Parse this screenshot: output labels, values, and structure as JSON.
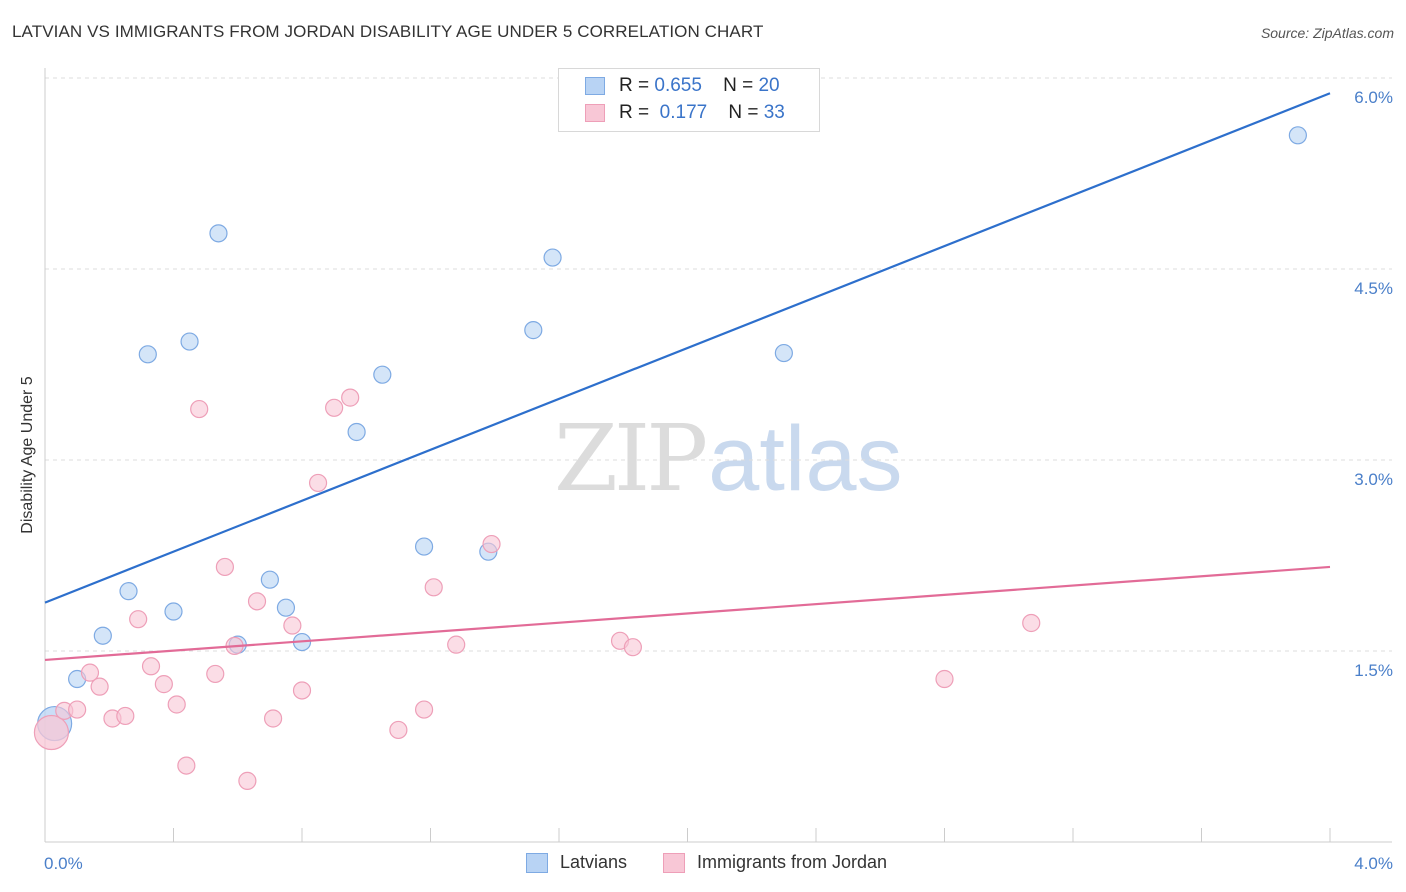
{
  "title": "LATVIAN VS IMMIGRANTS FROM JORDAN DISABILITY AGE UNDER 5 CORRELATION CHART",
  "source": "Source: ZipAtlas.com",
  "watermark": {
    "zip": "ZIP",
    "atlas": "atlas"
  },
  "colors": {
    "blue_fill": "#b8d3f4",
    "blue_stroke": "#7eaae3",
    "blue_line": "#2d6fcc",
    "pink_fill": "#f8c7d6",
    "pink_stroke": "#ee9fb8",
    "pink_line": "#e26b97",
    "tick_label": "#4a7fc9",
    "grid": "#dddddd"
  },
  "stats": [
    {
      "r_label": "R =",
      "r_value": "0.655",
      "n_label": "N =",
      "n_value": "20",
      "swatch": "blue"
    },
    {
      "r_label": "R =",
      "r_value": "0.177",
      "n_label": "N =",
      "n_value": "33",
      "swatch": "pink"
    }
  ],
  "legend": [
    {
      "label": "Latvians",
      "swatch": "blue"
    },
    {
      "label": "Immigrants from Jordan",
      "swatch": "pink"
    }
  ],
  "chart_data": {
    "type": "scatter",
    "title": "LATVIAN VS IMMIGRANTS FROM JORDAN DISABILITY AGE UNDER 5 CORRELATION CHART",
    "xlabel": "",
    "ylabel": "Disability Age Under 5",
    "xlim": [
      0,
      4.0
    ],
    "ylim": [
      0,
      6.0
    ],
    "x_tick_labels": [
      {
        "value": 0.0,
        "label": "0.0%"
      },
      {
        "value": 4.0,
        "label": "4.0%"
      }
    ],
    "y_tick_labels": [
      {
        "value": 1.5,
        "label": "1.5%"
      },
      {
        "value": 3.0,
        "label": "3.0%"
      },
      {
        "value": 4.5,
        "label": "4.5%"
      },
      {
        "value": 6.0,
        "label": "6.0%"
      }
    ],
    "grid": "horizontal dashed",
    "legend_position": "bottom-center",
    "series": [
      {
        "name": "Latvians",
        "color": "blue",
        "trendline": {
          "x": [
            0.0,
            4.0
          ],
          "y": [
            1.88,
            5.88
          ]
        },
        "points": [
          {
            "x": 0.03,
            "y": 0.93,
            "big": true
          },
          {
            "x": 0.1,
            "y": 1.28
          },
          {
            "x": 0.18,
            "y": 1.62
          },
          {
            "x": 0.26,
            "y": 1.97
          },
          {
            "x": 0.32,
            "y": 3.83
          },
          {
            "x": 0.4,
            "y": 1.81
          },
          {
            "x": 0.45,
            "y": 3.93
          },
          {
            "x": 0.54,
            "y": 4.78
          },
          {
            "x": 0.6,
            "y": 1.55
          },
          {
            "x": 0.7,
            "y": 2.06
          },
          {
            "x": 0.75,
            "y": 1.84
          },
          {
            "x": 0.8,
            "y": 1.57
          },
          {
            "x": 0.97,
            "y": 3.22
          },
          {
            "x": 1.05,
            "y": 3.67
          },
          {
            "x": 1.18,
            "y": 2.32
          },
          {
            "x": 1.38,
            "y": 2.28
          },
          {
            "x": 1.52,
            "y": 4.02
          },
          {
            "x": 1.58,
            "y": 4.59
          },
          {
            "x": 2.3,
            "y": 3.84
          },
          {
            "x": 3.9,
            "y": 5.55
          }
        ]
      },
      {
        "name": "Immigrants from Jordan",
        "color": "pink",
        "trendline": {
          "x": [
            0.0,
            4.0
          ],
          "y": [
            1.43,
            2.16
          ]
        },
        "points": [
          {
            "x": 0.02,
            "y": 0.86,
            "big": true
          },
          {
            "x": 0.06,
            "y": 1.03
          },
          {
            "x": 0.1,
            "y": 1.04
          },
          {
            "x": 0.14,
            "y": 1.33
          },
          {
            "x": 0.17,
            "y": 1.22
          },
          {
            "x": 0.21,
            "y": 0.97
          },
          {
            "x": 0.25,
            "y": 0.99
          },
          {
            "x": 0.29,
            "y": 1.75
          },
          {
            "x": 0.33,
            "y": 1.38
          },
          {
            "x": 0.37,
            "y": 1.24
          },
          {
            "x": 0.41,
            "y": 1.08
          },
          {
            "x": 0.44,
            "y": 0.6
          },
          {
            "x": 0.48,
            "y": 3.4
          },
          {
            "x": 0.53,
            "y": 1.32
          },
          {
            "x": 0.56,
            "y": 2.16
          },
          {
            "x": 0.59,
            "y": 1.54
          },
          {
            "x": 0.63,
            "y": 0.48
          },
          {
            "x": 0.66,
            "y": 1.89
          },
          {
            "x": 0.71,
            "y": 0.97
          },
          {
            "x": 0.77,
            "y": 1.7
          },
          {
            "x": 0.8,
            "y": 1.19
          },
          {
            "x": 0.85,
            "y": 2.82
          },
          {
            "x": 0.9,
            "y": 3.41
          },
          {
            "x": 0.95,
            "y": 3.49
          },
          {
            "x": 1.1,
            "y": 0.88
          },
          {
            "x": 1.18,
            "y": 1.04
          },
          {
            "x": 1.21,
            "y": 2.0
          },
          {
            "x": 1.28,
            "y": 1.55
          },
          {
            "x": 1.39,
            "y": 2.34
          },
          {
            "x": 1.79,
            "y": 1.58
          },
          {
            "x": 1.83,
            "y": 1.53
          },
          {
            "x": 2.8,
            "y": 1.28
          },
          {
            "x": 3.07,
            "y": 1.72
          }
        ]
      }
    ]
  }
}
